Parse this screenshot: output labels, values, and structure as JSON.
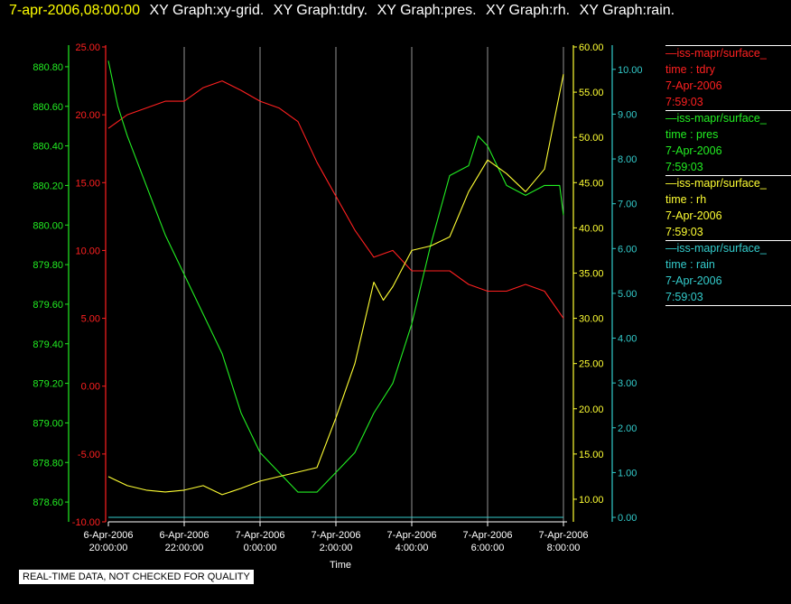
{
  "header": {
    "timestamp": "7-apr-2006,08:00:00",
    "graphs": [
      "XY Graph:xy-grid.",
      "XY Graph:tdry.",
      "XY Graph:pres.",
      "XY Graph:rh.",
      "XY Graph:rain."
    ]
  },
  "legend": [
    {
      "source": "—iss-mapr/surface_",
      "field": "time : tdry",
      "date": "7-Apr-2006",
      "time": "7:59:03",
      "color": "#ff2020"
    },
    {
      "source": "—iss-mapr/surface_",
      "field": "time : pres",
      "date": "7-Apr-2006",
      "time": "7:59:03",
      "color": "#22ee22"
    },
    {
      "source": "—iss-mapr/surface_",
      "field": "time : rh",
      "date": "7-Apr-2006",
      "time": "7:59:03",
      "color": "#ffff33"
    },
    {
      "source": "—iss-mapr/surface_",
      "field": "time : rain",
      "date": "7-Apr-2006",
      "time": "7:59:03",
      "color": "#33cccc"
    }
  ],
  "notice": "REAL-TIME DATA, NOT CHECKED FOR QUALITY",
  "chart_data": {
    "type": "line",
    "xlabel": "Time",
    "x_ticks": [
      {
        "h": 20,
        "date": "6-Apr-2006",
        "time": "20:00:00"
      },
      {
        "h": 22,
        "date": "6-Apr-2006",
        "time": "22:00:00"
      },
      {
        "h": 24,
        "date": "7-Apr-2006",
        "time": "0:00:00"
      },
      {
        "h": 26,
        "date": "7-Apr-2006",
        "time": "2:00:00"
      },
      {
        "h": 28,
        "date": "7-Apr-2006",
        "time": "4:00:00"
      },
      {
        "h": 30,
        "date": "7-Apr-2006",
        "time": "6:00:00"
      },
      {
        "h": 32,
        "date": "7-Apr-2006",
        "time": "8:00:00"
      }
    ],
    "xlim_hours": [
      20,
      32
    ],
    "grid": "vertical",
    "axes": {
      "tdry": {
        "side": "left-outer",
        "range": [
          -10,
          25
        ],
        "ticks": [
          "-10.00",
          "-5.00",
          "0.00",
          "5.00",
          "10.00",
          "15.00",
          "20.00",
          "25.00"
        ],
        "color": "#ff2020"
      },
      "pres": {
        "side": "left-inner",
        "range": [
          878.5,
          880.9
        ],
        "ticks": [
          "878.60",
          "878.80",
          "879.00",
          "879.20",
          "879.40",
          "879.60",
          "879.80",
          "880.00",
          "880.20",
          "880.40",
          "880.60",
          "880.80"
        ],
        "color": "#22ee22"
      },
      "rh": {
        "side": "right-inner",
        "range": [
          7.5,
          60
        ],
        "ticks": [
          "10.00",
          "15.00",
          "20.00",
          "25.00",
          "30.00",
          "35.00",
          "40.00",
          "45.00",
          "50.00",
          "55.00",
          "60.00"
        ],
        "color": "#ffff33"
      },
      "rain": {
        "side": "right-outer",
        "range": [
          -0.1,
          10.5
        ],
        "ticks": [
          "0.00",
          "1.00",
          "2.00",
          "3.00",
          "4.00",
          "5.00",
          "6.00",
          "7.00",
          "8.00",
          "9.00",
          "10.00"
        ],
        "color": "#33cccc"
      }
    },
    "series": [
      {
        "name": "tdry",
        "axis": "tdry",
        "color": "#ff2020",
        "x": [
          20.0,
          20.5,
          21.0,
          21.5,
          22.0,
          22.5,
          23.0,
          23.5,
          24.0,
          24.5,
          25.0,
          25.5,
          26.0,
          26.5,
          27.0,
          27.5,
          28.0,
          28.5,
          29.0,
          29.5,
          30.0,
          30.5,
          31.0,
          31.5,
          32.0
        ],
        "y": [
          19.0,
          20.0,
          20.5,
          21.0,
          21.0,
          22.0,
          22.5,
          21.8,
          21.0,
          20.5,
          19.5,
          16.5,
          14.0,
          11.5,
          9.5,
          10.0,
          8.5,
          8.5,
          8.5,
          7.5,
          7.0,
          7.0,
          7.5,
          7.0,
          5.0
        ]
      },
      {
        "name": "pres",
        "axis": "pres",
        "color": "#22ee22",
        "x": [
          20.0,
          20.25,
          20.5,
          21.0,
          21.5,
          22.0,
          22.5,
          23.0,
          23.5,
          24.0,
          24.5,
          25.0,
          25.5,
          26.0,
          26.5,
          27.0,
          27.5,
          28.0,
          28.5,
          29.0,
          29.5,
          29.75,
          30.0,
          30.5,
          31.0,
          31.5,
          31.9,
          32.0
        ],
        "y": [
          880.83,
          880.6,
          880.45,
          880.2,
          879.95,
          879.75,
          879.55,
          879.35,
          879.05,
          878.85,
          878.75,
          878.65,
          878.65,
          878.75,
          878.85,
          879.05,
          879.2,
          879.5,
          879.9,
          880.25,
          880.3,
          880.45,
          880.4,
          880.2,
          880.15,
          880.2,
          880.2,
          880.05
        ]
      },
      {
        "name": "rh",
        "axis": "rh",
        "color": "#ffff33",
        "x": [
          20.0,
          20.5,
          21.0,
          21.5,
          22.0,
          22.5,
          23.0,
          23.5,
          24.0,
          24.5,
          25.0,
          25.5,
          26.0,
          26.5,
          27.0,
          27.25,
          27.5,
          28.0,
          28.5,
          29.0,
          29.5,
          30.0,
          30.5,
          31.0,
          31.5,
          32.0
        ],
        "y": [
          12.5,
          11.5,
          11.0,
          10.8,
          11.0,
          11.5,
          10.5,
          11.2,
          12.0,
          12.5,
          13.0,
          13.5,
          19.0,
          25.0,
          34.0,
          32.0,
          33.5,
          37.5,
          38.0,
          39.0,
          44.0,
          47.5,
          46.0,
          44.0,
          46.5,
          57.0
        ]
      },
      {
        "name": "rain",
        "axis": "rain",
        "color": "#33cccc",
        "x": [
          20.0,
          32.0
        ],
        "y": [
          0.0,
          0.0
        ]
      }
    ]
  }
}
